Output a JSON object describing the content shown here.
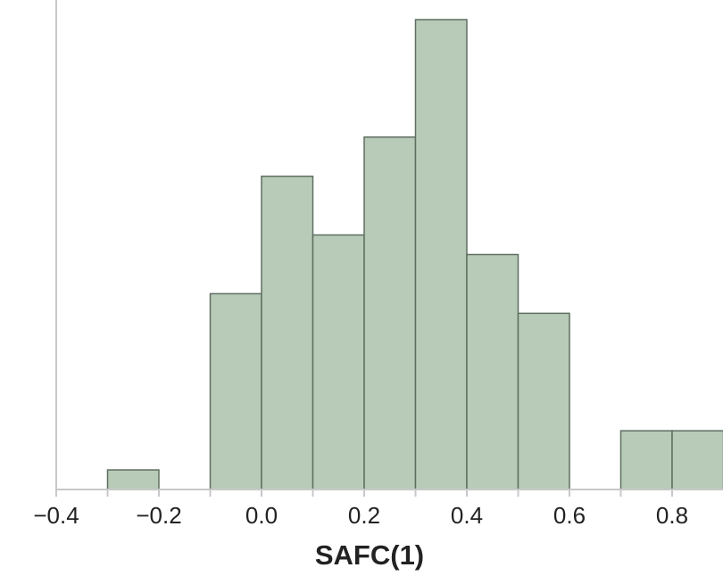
{
  "chart_data": {
    "type": "bar",
    "title": "",
    "xlabel": "SAFC(1)",
    "ylabel": "",
    "bin_edges": [
      -0.3,
      -0.2,
      -0.1,
      0.0,
      0.1,
      0.2,
      0.3,
      0.4,
      0.5,
      0.6,
      0.7,
      0.8,
      0.9
    ],
    "values": [
      1,
      0,
      10,
      16,
      13,
      18,
      24,
      12,
      9,
      0,
      3,
      3
    ],
    "xlim": [
      -0.4,
      0.9
    ],
    "ylim": [
      0,
      24.5
    ],
    "xticks": [
      -0.4,
      -0.2,
      0.0,
      0.2,
      0.4,
      0.6,
      0.8
    ],
    "xtick_labels": [
      "−0.4",
      "−0.2",
      "0.0",
      "0.2",
      "0.4",
      "0.6",
      "0.8"
    ],
    "grid": false,
    "colors": {
      "bar_fill": "#b8cbb9",
      "bar_stroke": "#5f6e60",
      "axis": "#c8c8c8"
    }
  }
}
